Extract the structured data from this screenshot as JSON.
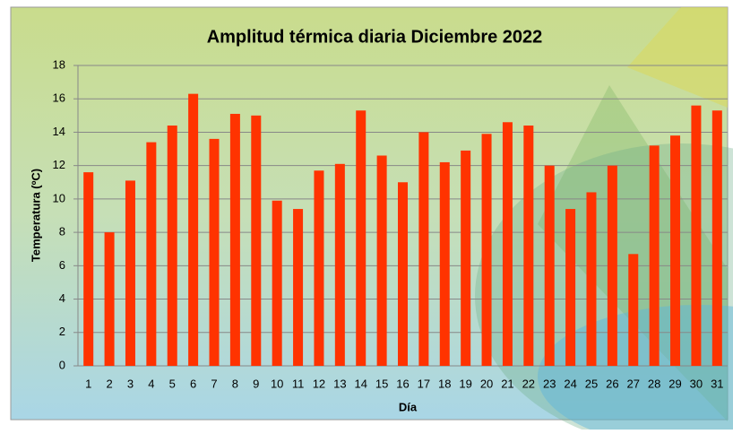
{
  "chart_data": {
    "type": "bar",
    "title": "Amplitud térmica diaria Diciembre 2022",
    "x_label": "Día",
    "y_label": "Temperatura (ºC)",
    "categories": [
      "1",
      "2",
      "3",
      "4",
      "5",
      "6",
      "7",
      "8",
      "9",
      "10",
      "11",
      "12",
      "13",
      "14",
      "15",
      "16",
      "17",
      "18",
      "19",
      "20",
      "21",
      "22",
      "23",
      "24",
      "25",
      "26",
      "27",
      "28",
      "29",
      "30",
      "31"
    ],
    "values": [
      11.6,
      8.0,
      11.1,
      13.4,
      14.4,
      16.3,
      13.6,
      15.1,
      15.0,
      9.9,
      9.4,
      11.7,
      12.1,
      15.3,
      12.6,
      11.0,
      14.0,
      12.2,
      12.9,
      13.9,
      14.6,
      14.4,
      12.0,
      9.4,
      10.4,
      12.0,
      6.7,
      13.2,
      13.8,
      15.6,
      15.3
    ],
    "color": "#ff3300",
    "ylim": [
      0,
      18
    ],
    "yticks": [
      0,
      2,
      4,
      6,
      8,
      10,
      12,
      14,
      16,
      18
    ],
    "grid": true
  }
}
